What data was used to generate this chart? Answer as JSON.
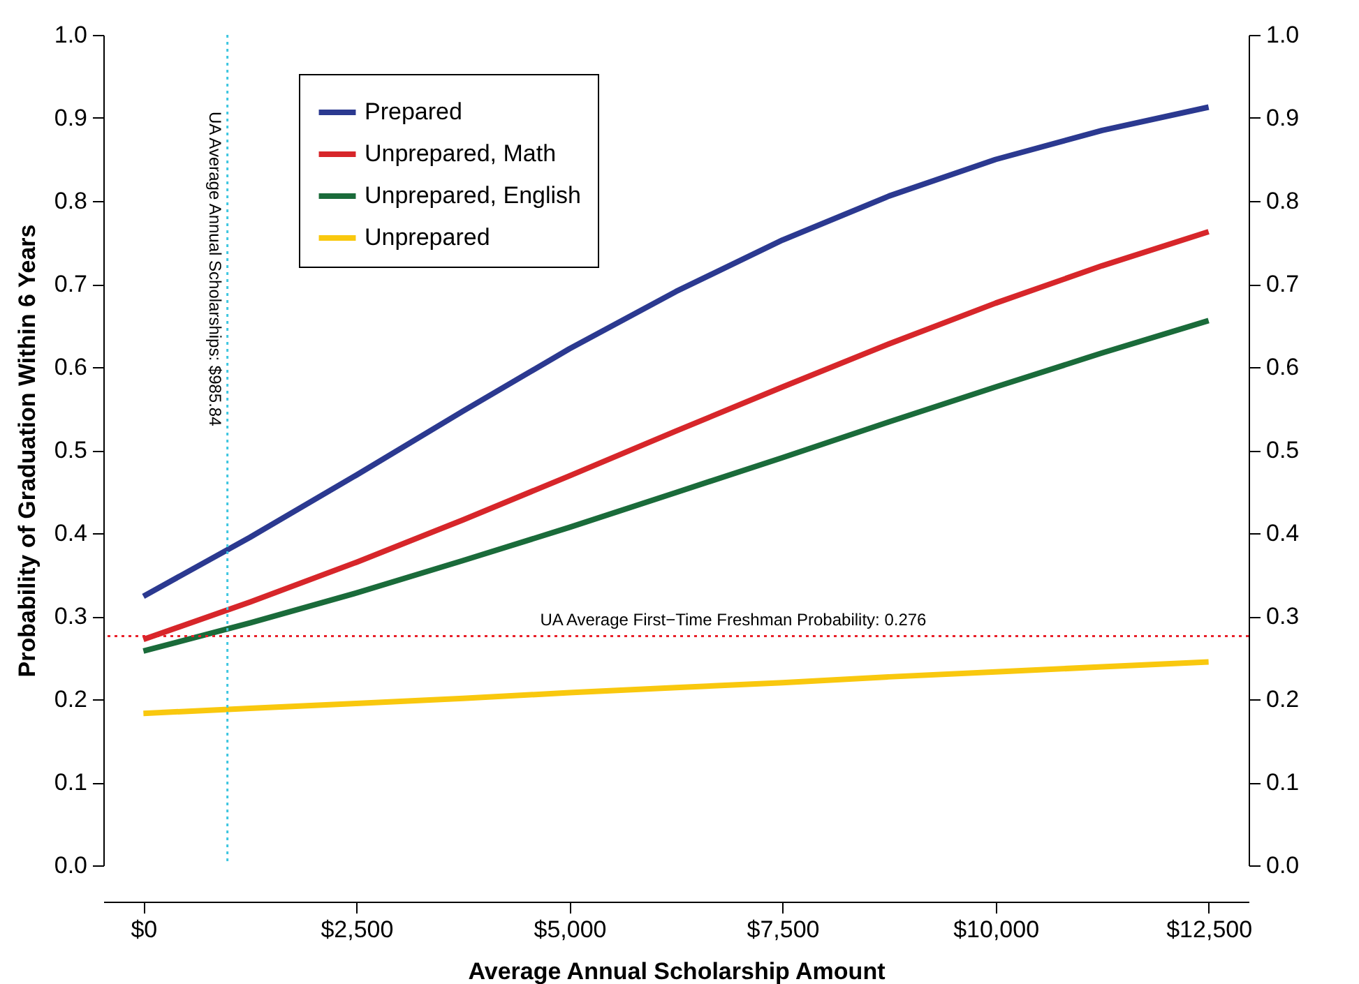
{
  "chart_data": {
    "type": "line",
    "xlabel": "Average Annual Scholarship Amount",
    "ylabel": "Probability of Graduation Within 6 Years",
    "x": [
      0,
      1250,
      2500,
      3750,
      5000,
      6250,
      7500,
      8750,
      10000,
      11250,
      12500
    ],
    "series": [
      {
        "name": "Prepared",
        "color": "#2b3990",
        "values": [
          0.324,
          0.395,
          0.47,
          0.547,
          0.622,
          0.691,
          0.753,
          0.806,
          0.85,
          0.885,
          0.913
        ]
      },
      {
        "name": "Unprepared, Math",
        "color": "#d7262a",
        "values": [
          0.272,
          0.317,
          0.365,
          0.416,
          0.469,
          0.523,
          0.576,
          0.628,
          0.677,
          0.722,
          0.763
        ]
      },
      {
        "name": "Unprepared, English",
        "color": "#1a6b3a",
        "values": [
          0.258,
          0.292,
          0.328,
          0.367,
          0.407,
          0.449,
          0.491,
          0.534,
          0.576,
          0.617,
          0.656
        ]
      },
      {
        "name": "Unprepared",
        "color": "#f9c80e",
        "values": [
          0.183,
          0.189,
          0.195,
          0.201,
          0.208,
          0.214,
          0.22,
          0.227,
          0.233,
          0.239,
          0.245
        ]
      }
    ],
    "xlim": [
      -470,
      12970
    ],
    "xticks": [
      {
        "value": 0,
        "label": "$0"
      },
      {
        "value": 2500,
        "label": "$2,500"
      },
      {
        "value": 5000,
        "label": "$5,000"
      },
      {
        "value": 7500,
        "label": "$7,500"
      },
      {
        "value": 10000,
        "label": "$10,000"
      },
      {
        "value": 12500,
        "label": "$12,500"
      }
    ],
    "ylim": [
      0,
      1
    ],
    "yticks": [
      {
        "value": 0,
        "label": "0.0"
      },
      0.1,
      0.2,
      0.3,
      0.4,
      0.5,
      0.6,
      0.7,
      0.8,
      0.9,
      {
        "value": 1,
        "label": "1.0"
      }
    ],
    "y2lim": [
      0,
      1
    ],
    "y2ticks": [
      {
        "value": 0,
        "label": "0.0"
      },
      0.1,
      0.2,
      0.3,
      0.4,
      0.5,
      0.6,
      0.7,
      0.8,
      0.9,
      {
        "value": 1,
        "label": "1.0"
      }
    ],
    "ref_lines": [
      {
        "axis": "x",
        "value": 985.84,
        "label": "UA Average Annual Scholarships: $985.84",
        "color": "#3ec6e0",
        "line_style": "dotted"
      },
      {
        "axis": "y",
        "value": 0.276,
        "label": "UA Average First−Time Freshman Probability: 0.276",
        "color": "#e8202a",
        "line_style": "dotted"
      }
    ],
    "legend": "top left",
    "grid": false,
    "marker": "none",
    "line_style": "solid"
  }
}
